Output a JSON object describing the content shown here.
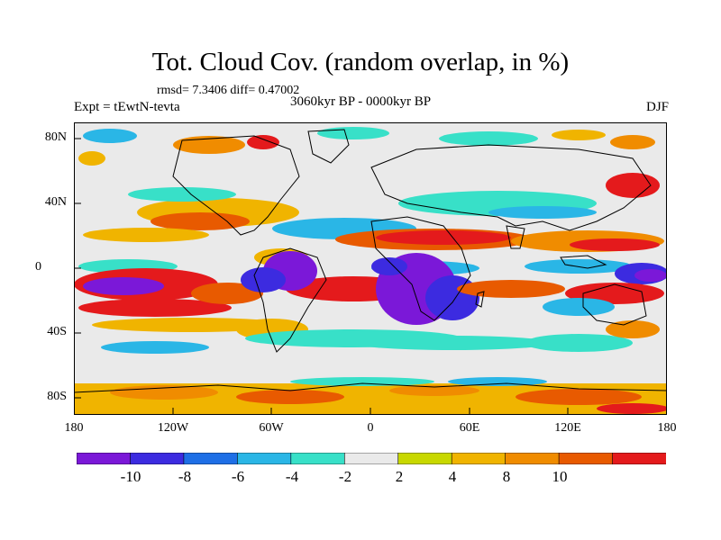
{
  "figure": {
    "title": "Tot. Cloud Cov. (random overlap, in %)",
    "stats": "rmsd= 7.3406 diff= 0.47002",
    "experiment": "Expt = tEwtN-tevta",
    "period": "3060kyr BP - 0000kyr BP",
    "season": "DJF"
  },
  "axes": {
    "y_ticks": [
      "80N",
      "40N",
      "0",
      "40S",
      "80S"
    ],
    "x_ticks": [
      "180",
      "120W",
      "60W",
      "0",
      "60E",
      "120E",
      "180"
    ]
  },
  "colorbar": {
    "colors": [
      "#7b18d8",
      "#3c2be0",
      "#1e6fe6",
      "#2ab6e6",
      "#38e0c8",
      "#eaeaea",
      "#c8d800",
      "#f0b400",
      "#f08c00",
      "#e85a00",
      "#e41a1c"
    ],
    "labels": [
      "-10",
      "-8",
      "-6",
      "-4",
      "-2",
      "2",
      "4",
      "8",
      "10"
    ]
  }
}
